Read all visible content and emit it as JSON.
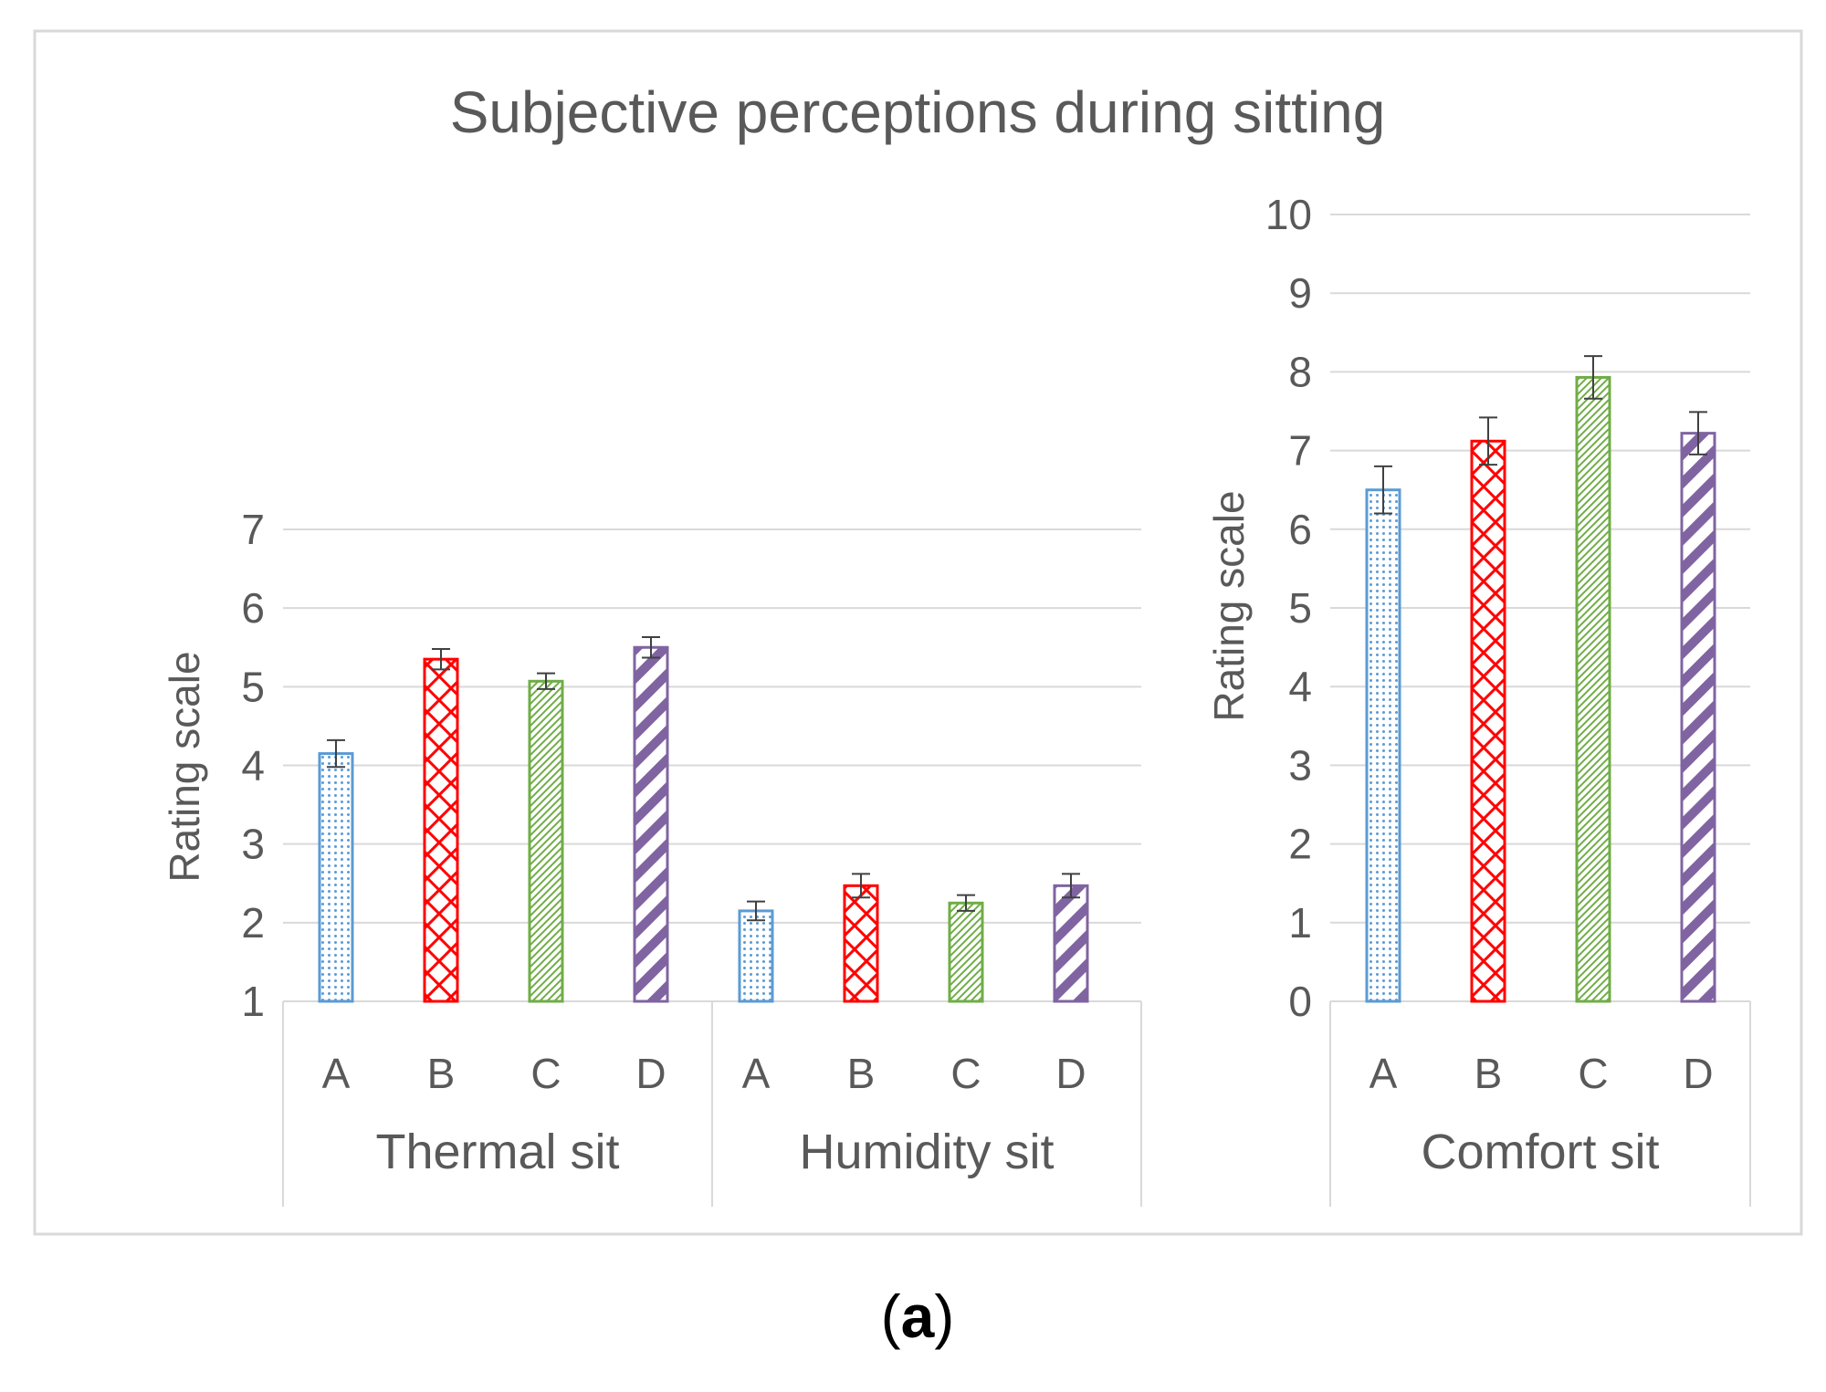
{
  "caption": {
    "open": "(",
    "letter": "a",
    "close": ")"
  },
  "chart_data": {
    "type": "bar",
    "title": "Subjective perceptions during sitting",
    "ylabel": "Rating scale",
    "legend": "none",
    "grid": true,
    "series_styles": [
      {
        "name": "A",
        "color": "#5b9bd5",
        "pattern": "dots"
      },
      {
        "name": "B",
        "color": "#ff0000",
        "pattern": "crosshatch"
      },
      {
        "name": "C",
        "color": "#70ad47",
        "pattern": "thin-diagonal"
      },
      {
        "name": "D",
        "color": "#8064a2",
        "pattern": "wide-diagonal"
      }
    ],
    "panels": [
      {
        "id": "left",
        "ylim": [
          1,
          7
        ],
        "yticks": [
          "1",
          "2",
          "3",
          "4",
          "5",
          "6",
          "7"
        ],
        "groups": [
          {
            "label": "Thermal sit",
            "categories": [
              "A",
              "B",
              "C",
              "D"
            ],
            "values": [
              4.15,
              5.35,
              5.07,
              5.5
            ],
            "errors": [
              0.17,
              0.13,
              0.1,
              0.13
            ]
          },
          {
            "label": "Humidity sit",
            "categories": [
              "A",
              "B",
              "C",
              "D"
            ],
            "values": [
              2.15,
              2.47,
              2.25,
              2.47
            ],
            "errors": [
              0.12,
              0.15,
              0.1,
              0.15
            ]
          }
        ]
      },
      {
        "id": "right",
        "ylim": [
          0,
          10
        ],
        "yticks": [
          "0",
          "1",
          "2",
          "3",
          "4",
          "5",
          "6",
          "7",
          "8",
          "9",
          "10"
        ],
        "groups": [
          {
            "label": "Comfort sit",
            "categories": [
              "A",
              "B",
              "C",
              "D"
            ],
            "values": [
              6.5,
              7.12,
              7.93,
              7.22
            ],
            "errors": [
              0.3,
              0.3,
              0.27,
              0.27
            ]
          }
        ]
      }
    ]
  }
}
